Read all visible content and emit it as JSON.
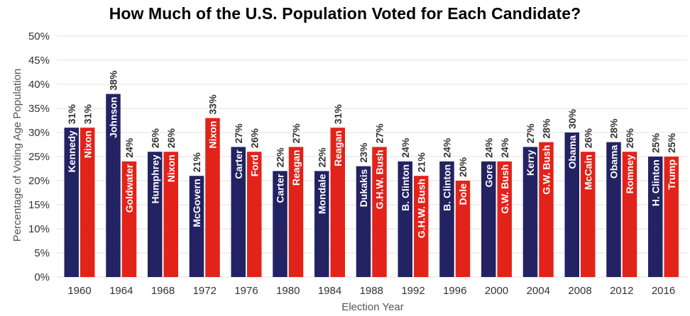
{
  "chart_data": {
    "type": "bar",
    "title": "How Much of the U.S. Population Voted for Each Candidate?",
    "xlabel": "Election Year",
    "ylabel": "Percentage of Voting Age Population",
    "ylim": [
      0,
      50
    ],
    "yticks": [
      "0%",
      "5%",
      "10%",
      "15%",
      "20%",
      "25%",
      "30%",
      "35%",
      "40%",
      "45%",
      "50%"
    ],
    "grid": true,
    "colors": {
      "democrat": "#232262",
      "republican": "#e2231a"
    },
    "categories": [
      "1960",
      "1964",
      "1968",
      "1972",
      "1976",
      "1980",
      "1984",
      "1988",
      "1992",
      "1996",
      "2000",
      "2004",
      "2008",
      "2012",
      "2016"
    ],
    "series": [
      {
        "party": "democrat",
        "candidates": [
          "Kennedy",
          "Johnson",
          "Humphrey",
          "McGovern",
          "Carter",
          "Carter",
          "Mondale",
          "Dukakis",
          "B. Clinton",
          "B. Clinton",
          "Gore",
          "Kerry",
          "Obama",
          "Obama",
          "H. Clinton"
        ],
        "values": [
          31,
          38,
          26,
          21,
          27,
          22,
          22,
          23,
          24,
          24,
          24,
          27,
          30,
          28,
          25
        ],
        "labels": [
          "31%",
          "38%",
          "26%",
          "21%",
          "27%",
          "22%",
          "22%",
          "23%",
          "24%",
          "24%",
          "24%",
          "27%",
          "30%",
          "28%",
          "25%"
        ]
      },
      {
        "party": "republican",
        "candidates": [
          "Nixon",
          "Goldwater",
          "Nixon",
          "Nixon",
          "Ford",
          "Reagan",
          "Reagan",
          "G.H.W. Bush",
          "G.H.W. Bush",
          "Dole",
          "G.W. Bush",
          "G.W. Bush",
          "McCain",
          "Romney",
          "Trump"
        ],
        "values": [
          31,
          24,
          26,
          33,
          26,
          27,
          31,
          27,
          21,
          20,
          24,
          28,
          26,
          26,
          25
        ],
        "labels": [
          "31%",
          "24%",
          "26%",
          "33%",
          "26%",
          "27%",
          "31%",
          "27%",
          "21%",
          "20%",
          "24%",
          "28%",
          "26%",
          "26%",
          "25%"
        ]
      }
    ]
  }
}
